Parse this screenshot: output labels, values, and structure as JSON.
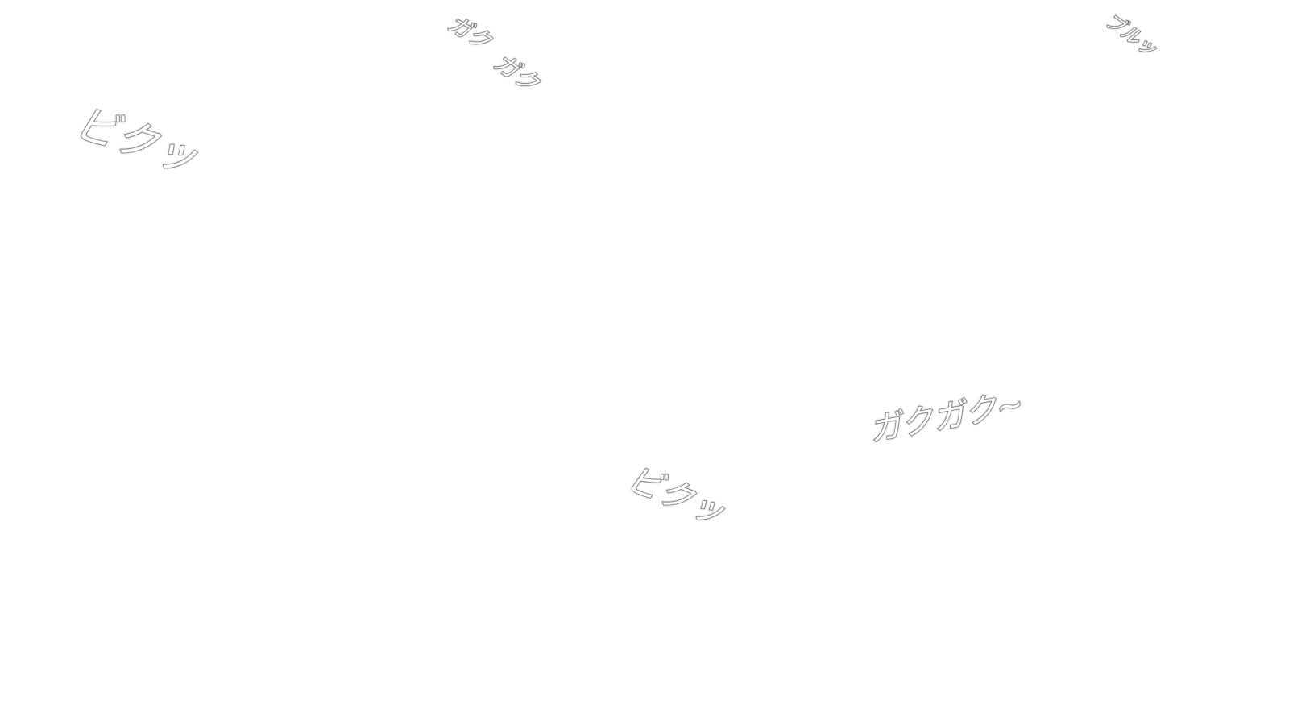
{
  "sound_effects": [
    {
      "text": "ビクッ"
    },
    {
      "text": "ガク"
    },
    {
      "text": "ガク"
    },
    {
      "text": "ブルッ"
    },
    {
      "text": "ビクッ"
    },
    {
      "text": "ガクガク~"
    }
  ]
}
